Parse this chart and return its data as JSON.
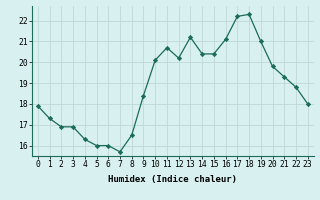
{
  "x": [
    0,
    1,
    2,
    3,
    4,
    5,
    6,
    7,
    8,
    9,
    10,
    11,
    12,
    13,
    14,
    15,
    16,
    17,
    18,
    19,
    20,
    21,
    22,
    23
  ],
  "y": [
    17.9,
    17.3,
    16.9,
    16.9,
    16.3,
    16.0,
    16.0,
    15.7,
    16.5,
    18.4,
    20.1,
    20.7,
    20.2,
    21.2,
    20.4,
    20.4,
    21.1,
    22.2,
    22.3,
    21.0,
    19.8,
    19.3,
    18.8,
    18.0
  ],
  "line_color": "#1a6b5a",
  "marker": "D",
  "marker_size": 2.2,
  "bg_color": "#d8f0f0",
  "grid_color": "#c0d8d8",
  "xlabel": "Humidex (Indice chaleur)",
  "xlim": [
    -0.5,
    23.5
  ],
  "ylim": [
    15.5,
    22.7
  ],
  "yticks": [
    16,
    17,
    18,
    19,
    20,
    21,
    22
  ],
  "xticks": [
    0,
    1,
    2,
    3,
    4,
    5,
    6,
    7,
    8,
    9,
    10,
    11,
    12,
    13,
    14,
    15,
    16,
    17,
    18,
    19,
    20,
    21,
    22,
    23
  ],
  "label_fontsize": 6.5,
  "tick_fontsize": 5.8
}
